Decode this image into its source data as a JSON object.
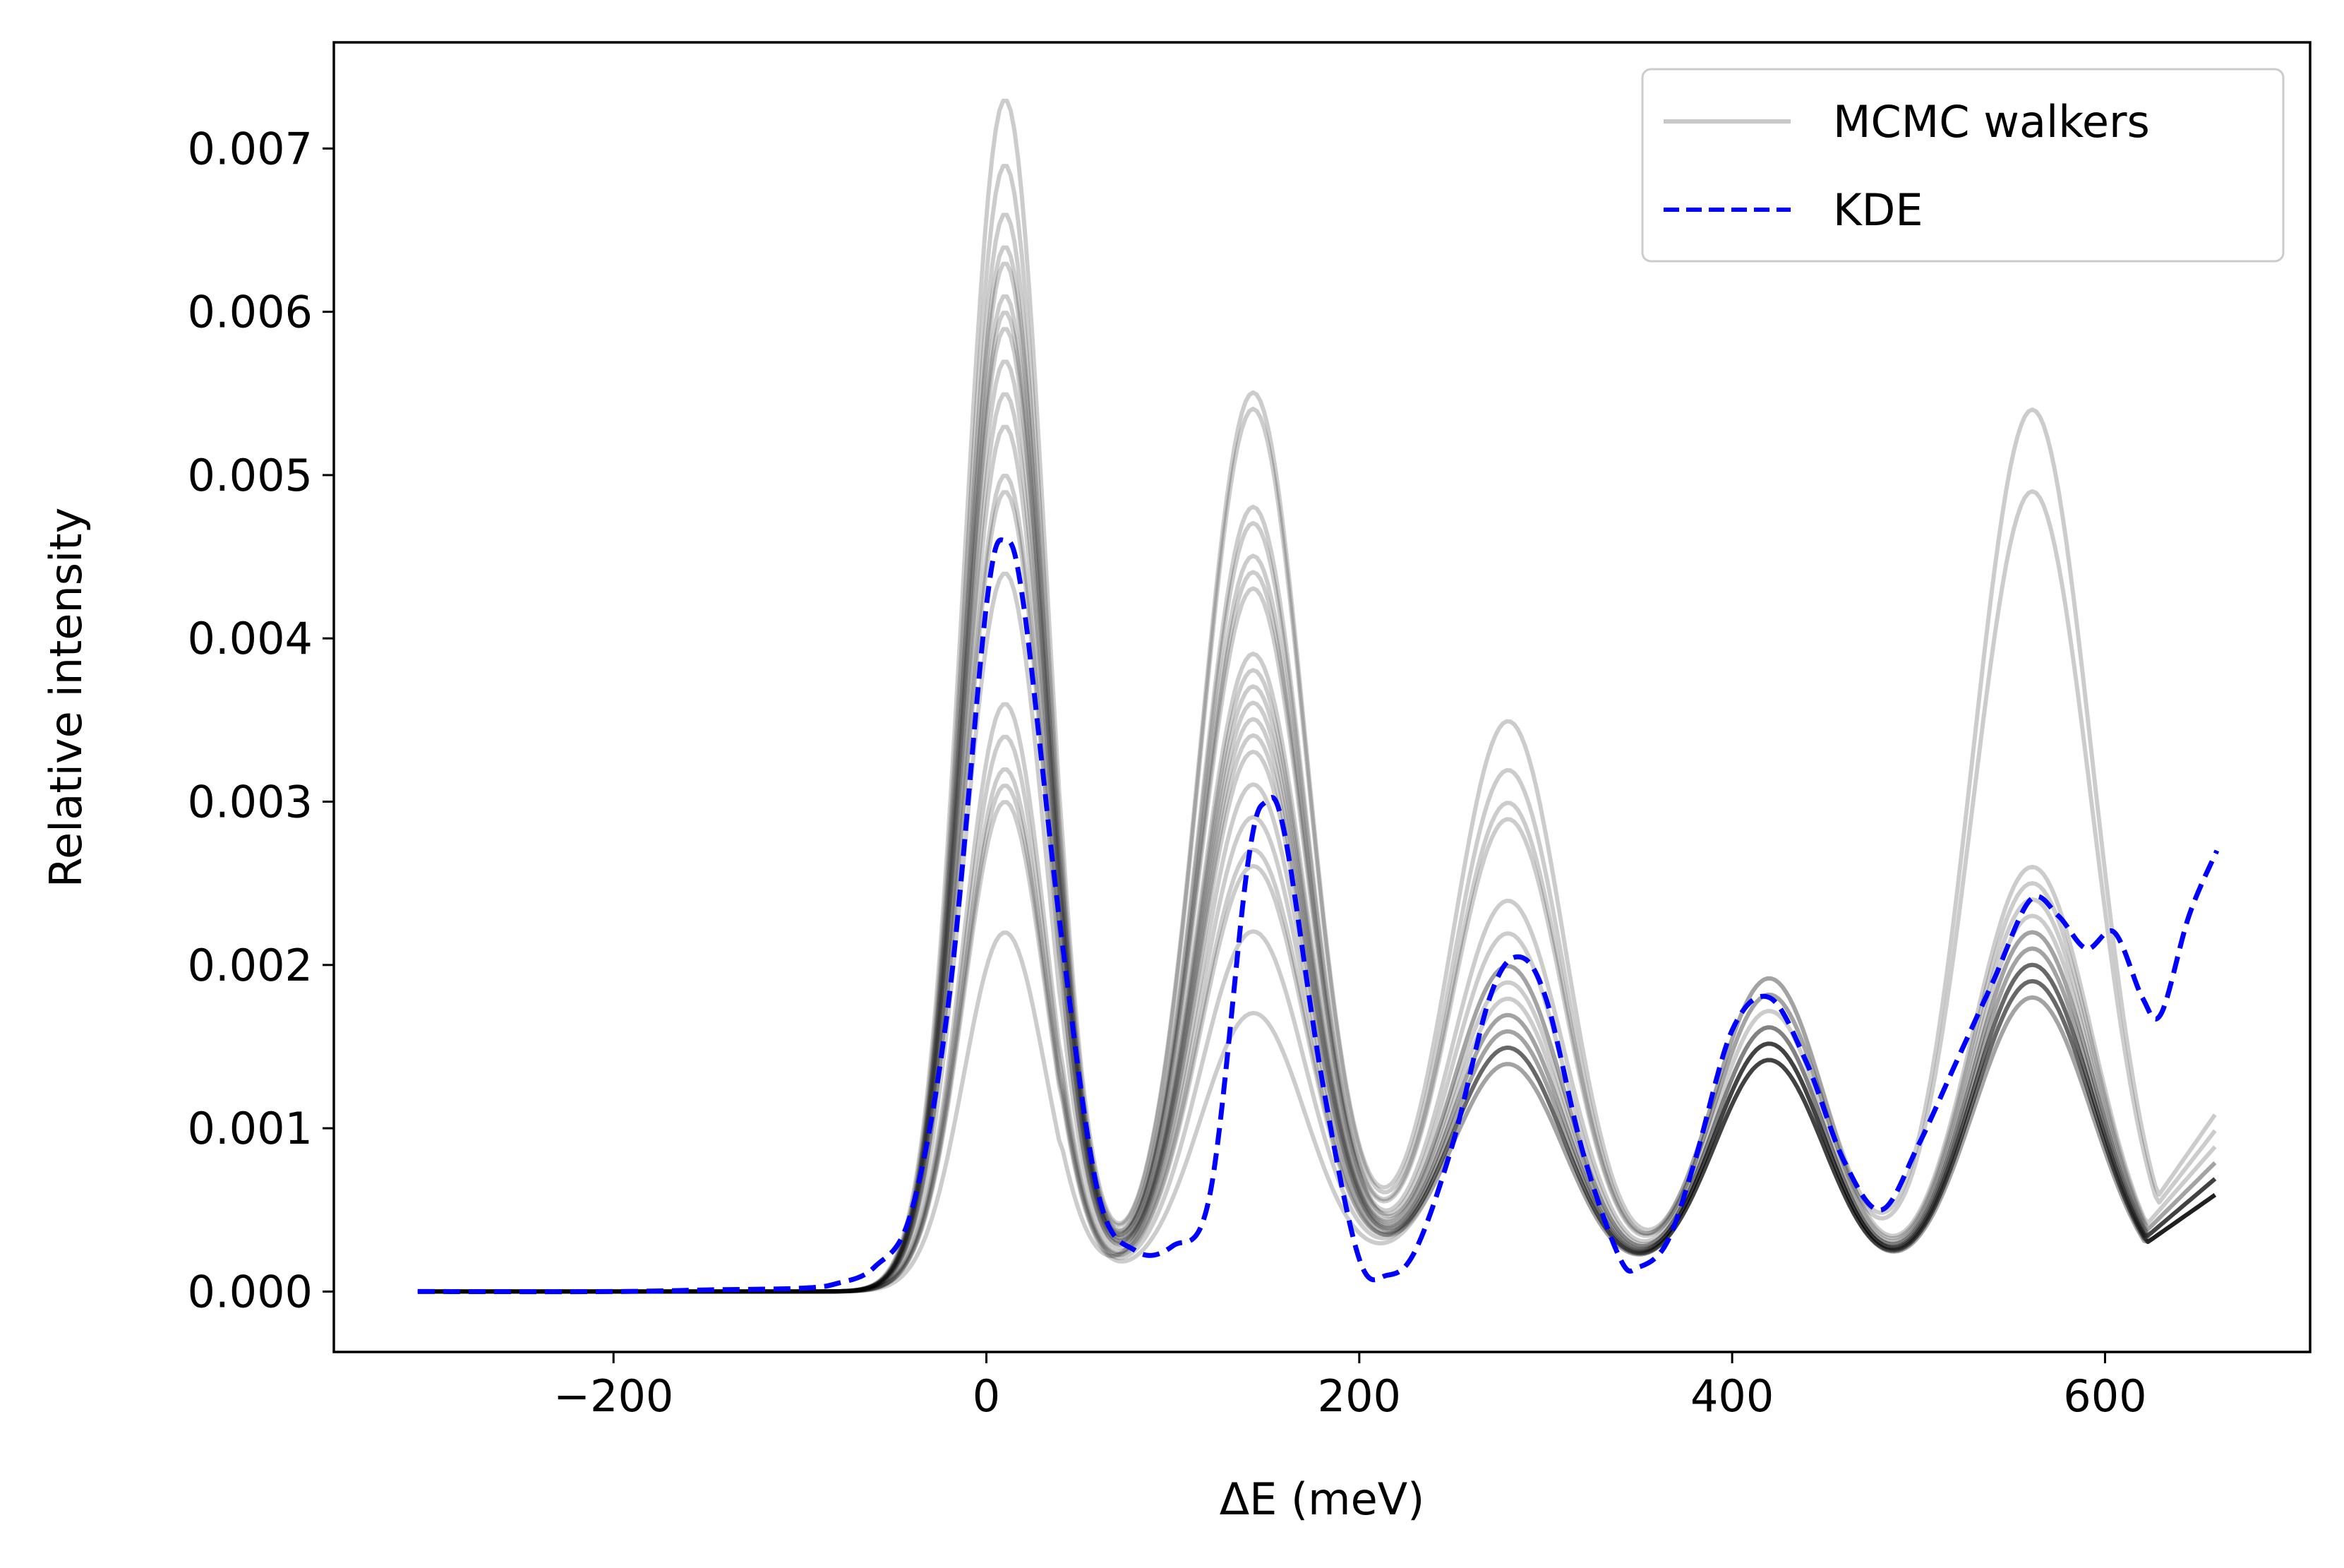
{
  "chart_data": {
    "type": "line",
    "title": "",
    "xlabel": "ΔE (meV)",
    "ylabel": "Relative intensity",
    "xlim": [
      -350,
      710
    ],
    "ylim": [
      -0.00037,
      0.00765
    ],
    "xticks": [
      -200,
      0,
      200,
      400,
      600
    ],
    "xtick_labels": [
      "−200",
      "0",
      "200",
      "400",
      "600"
    ],
    "yticks": [
      0.0,
      0.001,
      0.002,
      0.003,
      0.004,
      0.005,
      0.006,
      0.007
    ],
    "ytick_labels": [
      "0.000",
      "0.001",
      "0.002",
      "0.003",
      "0.004",
      "0.005",
      "0.006",
      "0.007"
    ],
    "grid": false,
    "legend": {
      "position": "top-right",
      "entries": [
        {
          "label": "MCMC walkers",
          "color": "#c8c8c8",
          "style": "solid"
        },
        {
          "label": "KDE",
          "color": "#0000ff",
          "style": "dashed"
        }
      ]
    },
    "walkers": {
      "color": "#000000",
      "opacity": 0.2,
      "peak_centers": [
        10,
        143,
        280,
        420,
        561
      ],
      "samples": [
        {
          "peaks": [
            0.0073,
            0.0054,
            0.0034,
            0.0019,
            0.0054
          ],
          "tail": 0.0011
        },
        {
          "peaks": [
            0.0069,
            0.0053,
            0.0031,
            0.0018,
            0.0049
          ],
          "tail": 0.001
        },
        {
          "peaks": [
            0.0066,
            0.0047,
            0.0029,
            0.0019,
            0.0026
          ],
          "tail": 0.0009
        },
        {
          "peaks": [
            0.0064,
            0.0046,
            0.0028,
            0.0018,
            0.0025
          ],
          "tail": 0.0008
        },
        {
          "peaks": [
            0.0063,
            0.0043,
            0.0023,
            0.0017,
            0.0024
          ],
          "tail": 0.0008
        },
        {
          "peaks": [
            0.0061,
            0.0042,
            0.0021,
            0.0016,
            0.0023
          ],
          "tail": 0.0007
        },
        {
          "peaks": [
            0.006,
            0.0038,
            0.0019,
            0.0016,
            0.0022
          ],
          "tail": 0.0007
        },
        {
          "peaks": [
            0.0059,
            0.0037,
            0.0018,
            0.0015,
            0.0021
          ],
          "tail": 0.0007
        },
        {
          "peaks": [
            0.0055,
            0.0036,
            0.0017,
            0.0015,
            0.0021
          ],
          "tail": 0.0006
        },
        {
          "peaks": [
            0.0053,
            0.0035,
            0.0016,
            0.0015,
            0.002
          ],
          "tail": 0.0006
        },
        {
          "peaks": [
            0.005,
            0.0034,
            0.0015,
            0.0014,
            0.002
          ],
          "tail": 0.0006
        },
        {
          "peaks": [
            0.0049,
            0.0033,
            0.0014,
            0.0014,
            0.0019
          ],
          "tail": 0.0006
        },
        {
          "peaks": [
            0.0044,
            0.003,
            0.0014,
            0.0014,
            0.0019
          ],
          "tail": 0.0006
        },
        {
          "peaks": [
            0.0036,
            0.0028,
            0.0013,
            0.0014,
            0.0018
          ],
          "tail": 0.0006
        },
        {
          "peaks": [
            0.0034,
            0.0026,
            0.0014,
            0.0015,
            0.0019
          ],
          "tail": 0.0006
        },
        {
          "peaks": [
            0.0032,
            0.0025,
            0.0015,
            0.0015,
            0.002
          ],
          "tail": 0.0007
        },
        {
          "peaks": [
            0.0031,
            0.0021,
            0.0014,
            0.0014,
            0.0019
          ],
          "tail": 0.0006
        },
        {
          "peaks": [
            0.003,
            0.0016,
            0.0013,
            0.0014,
            0.0018
          ],
          "tail": 0.0006
        },
        {
          "peaks": [
            0.0022,
            0.0032,
            0.0016,
            0.0015,
            0.002
          ],
          "tail": 0.0007
        },
        {
          "peaks": [
            0.0057,
            0.0044,
            0.0019,
            0.0016,
            0.0022
          ],
          "tail": 0.0007
        }
      ]
    },
    "kde": {
      "color": "#0000ff",
      "x": [
        -305,
        -200,
        -150,
        -100,
        -80,
        -60,
        -40,
        -20,
        0,
        10,
        20,
        40,
        60,
        80,
        100,
        120,
        140,
        150,
        160,
        180,
        200,
        215,
        230,
        250,
        270,
        285,
        300,
        320,
        340,
        350,
        365,
        380,
        400,
        420,
        440,
        460,
        480,
        500,
        520,
        540,
        560,
        575,
        590,
        605,
        620,
        630,
        645,
        660
      ],
      "y": [
        0.0,
        0.0,
        1e-05,
        2e-05,
        5e-05,
        0.00015,
        0.0005,
        0.0018,
        0.0042,
        0.0046,
        0.0042,
        0.0022,
        0.0006,
        0.00025,
        0.00028,
        0.0006,
        0.0026,
        0.003,
        0.0028,
        0.0013,
        0.0002,
        0.0001,
        0.00025,
        0.0009,
        0.0018,
        0.00205,
        0.0018,
        0.00085,
        0.0002,
        0.00015,
        0.0003,
        0.0008,
        0.0016,
        0.0018,
        0.0014,
        0.0008,
        0.0005,
        0.0009,
        0.0014,
        0.0019,
        0.0024,
        0.0023,
        0.0021,
        0.0022,
        0.0018,
        0.0017,
        0.0023,
        0.0027
      ]
    }
  }
}
